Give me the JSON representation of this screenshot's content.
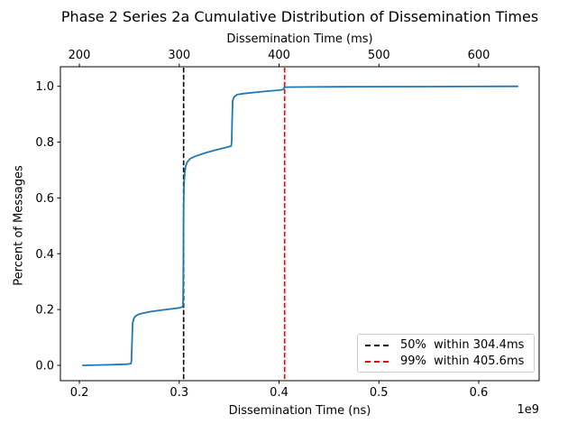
{
  "title": "Phase 2 Series 2a Cumulative Distribution of Dissemination Times",
  "axes": {
    "top_label": "Dissemination Time (ms)",
    "bottom_label": "Dissemination Time (ns)",
    "y_label": "Percent of Messages",
    "offset_label": "1e9"
  },
  "legend": {
    "items": [
      {
        "label": "50%  within 304.4ms",
        "color": "#000000"
      },
      {
        "label": "99%  within 405.6ms",
        "color": "#ff0000"
      }
    ]
  },
  "chart_data": {
    "type": "line",
    "title": "Phase 2 Series 2a Cumulative Distribution of Dissemination Times",
    "xlabel": "Dissemination Time (ns)",
    "xlabel_top": "Dissemination Time (ms)",
    "ylabel": "Percent of Messages",
    "x_scale_offset": "1e9",
    "xlim": [
      0.181,
      0.6605
    ],
    "ylim": [
      -0.055,
      1.07
    ],
    "x_ticks": [
      0.2,
      0.3,
      0.4,
      0.5,
      0.6
    ],
    "x_tick_labels": [
      "0.2",
      "0.3",
      "0.4",
      "0.5",
      "0.6"
    ],
    "x_ticks_top_ms": [
      200,
      300,
      400,
      500,
      600
    ],
    "y_ticks": [
      0.0,
      0.2,
      0.4,
      0.6,
      0.8,
      1.0
    ],
    "y_tick_labels": [
      "0.0",
      "0.2",
      "0.4",
      "0.6",
      "0.8",
      "1.0"
    ],
    "grid": false,
    "legend_position": "lower right",
    "line_color": "#1f77b4",
    "markers": [
      {
        "name": "p50",
        "x": 0.3044,
        "percent": "50%",
        "value_ms": 304.4,
        "color": "#000000",
        "style": "dashed"
      },
      {
        "name": "p99",
        "x": 0.4056,
        "percent": "99%",
        "value_ms": 405.6,
        "color": "#ff0000",
        "style": "dashed"
      }
    ],
    "series": [
      {
        "name": "cumulative-distribution",
        "points": [
          [
            0.2035,
            0.0
          ],
          [
            0.23,
            0.002
          ],
          [
            0.248,
            0.004
          ],
          [
            0.2515,
            0.006
          ],
          [
            0.2522,
            0.015
          ],
          [
            0.2528,
            0.09
          ],
          [
            0.2533,
            0.15
          ],
          [
            0.2545,
            0.168
          ],
          [
            0.2565,
            0.177
          ],
          [
            0.26,
            0.184
          ],
          [
            0.27,
            0.192
          ],
          [
            0.285,
            0.199
          ],
          [
            0.3,
            0.206
          ],
          [
            0.303,
            0.209
          ],
          [
            0.3038,
            0.213
          ],
          [
            0.3041,
            0.3
          ],
          [
            0.3044,
            0.56
          ],
          [
            0.3048,
            0.645
          ],
          [
            0.3055,
            0.69
          ],
          [
            0.3065,
            0.714
          ],
          [
            0.308,
            0.728
          ],
          [
            0.311,
            0.741
          ],
          [
            0.316,
            0.749
          ],
          [
            0.325,
            0.76
          ],
          [
            0.335,
            0.77
          ],
          [
            0.345,
            0.779
          ],
          [
            0.352,
            0.786
          ],
          [
            0.3526,
            0.8
          ],
          [
            0.353,
            0.88
          ],
          [
            0.3536,
            0.948
          ],
          [
            0.355,
            0.962
          ],
          [
            0.358,
            0.97
          ],
          [
            0.365,
            0.974
          ],
          [
            0.375,
            0.978
          ],
          [
            0.39,
            0.983
          ],
          [
            0.4,
            0.986
          ],
          [
            0.4035,
            0.988
          ],
          [
            0.4045,
            0.99
          ],
          [
            0.4052,
            0.996
          ],
          [
            0.407,
            0.997
          ],
          [
            0.43,
            0.9975
          ],
          [
            0.48,
            0.9985
          ],
          [
            0.55,
            0.999
          ],
          [
            0.639,
            1.0
          ]
        ]
      }
    ]
  }
}
